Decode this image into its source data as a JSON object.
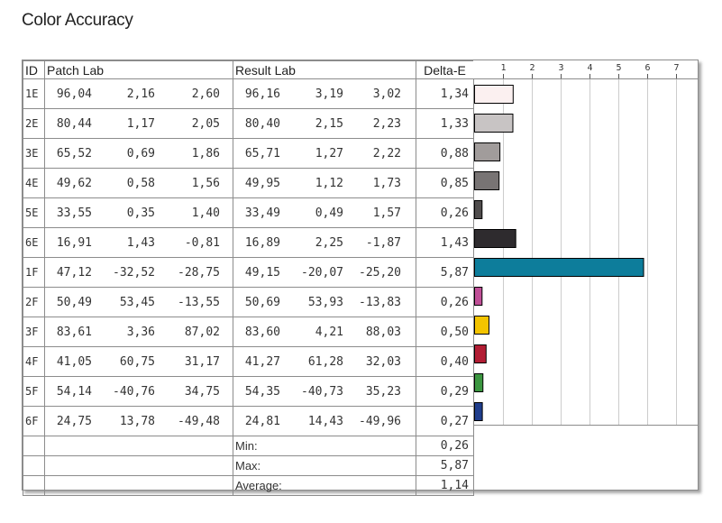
{
  "page": {
    "title": "Color Accuracy"
  },
  "table": {
    "headers": {
      "id": "ID",
      "patch": "Patch Lab",
      "result": "Result Lab",
      "delta": "Delta-E"
    },
    "rows": [
      {
        "id": "1E",
        "patch": [
          "96,04",
          "2,16",
          "2,60"
        ],
        "result": [
          "96,16",
          "3,19",
          "3,02"
        ],
        "delta": "1,34",
        "color": "#fbf0f0"
      },
      {
        "id": "2E",
        "patch": [
          "80,44",
          "1,17",
          "2,05"
        ],
        "result": [
          "80,40",
          "2,15",
          "2,23"
        ],
        "delta": "1,33",
        "color": "#c8c4c4"
      },
      {
        "id": "3E",
        "patch": [
          "65,52",
          "0,69",
          "1,86"
        ],
        "result": [
          "65,71",
          "1,27",
          "2,22"
        ],
        "delta": "0,88",
        "color": "#a19c9b"
      },
      {
        "id": "4E",
        "patch": [
          "49,62",
          "0,58",
          "1,56"
        ],
        "result": [
          "49,95",
          "1,12",
          "1,73"
        ],
        "delta": "0,85",
        "color": "#787474"
      },
      {
        "id": "5E",
        "patch": [
          "33,55",
          "0,35",
          "1,40"
        ],
        "result": [
          "33,49",
          "0,49",
          "1,57"
        ],
        "delta": "0,26",
        "color": "#4f4c4c"
      },
      {
        "id": "6E",
        "patch": [
          "16,91",
          "1,43",
          "-0,81"
        ],
        "result": [
          "16,89",
          "2,25",
          "-1,87"
        ],
        "delta": "1,43",
        "color": "#2e2b2e"
      },
      {
        "id": "1F",
        "patch": [
          "47,12",
          "-32,52",
          "-28,75"
        ],
        "result": [
          "49,15",
          "-20,07",
          "-25,20"
        ],
        "delta": "5,87",
        "color": "#0d7d9b"
      },
      {
        "id": "2F",
        "patch": [
          "50,49",
          "53,45",
          "-13,55"
        ],
        "result": [
          "50,69",
          "53,93",
          "-13,83"
        ],
        "delta": "0,26",
        "color": "#c04f97"
      },
      {
        "id": "3F",
        "patch": [
          "83,61",
          "3,36",
          "87,02"
        ],
        "result": [
          "83,60",
          "4,21",
          "88,03"
        ],
        "delta": "0,50",
        "color": "#f3c400"
      },
      {
        "id": "4F",
        "patch": [
          "41,05",
          "60,75",
          "31,17"
        ],
        "result": [
          "41,27",
          "61,28",
          "32,03"
        ],
        "delta": "0,40",
        "color": "#b21d34"
      },
      {
        "id": "5F",
        "patch": [
          "54,14",
          "-40,76",
          "34,75"
        ],
        "result": [
          "54,35",
          "-40,73",
          "35,23"
        ],
        "delta": "0,29",
        "color": "#3b9640"
      },
      {
        "id": "6F",
        "patch": [
          "24,75",
          "13,78",
          "-49,48"
        ],
        "result": [
          "24,81",
          "14,43",
          "-49,96"
        ],
        "delta": "0,27",
        "color": "#1f3d8c"
      }
    ],
    "summary": [
      {
        "label": "Min:",
        "value": "0,26"
      },
      {
        "label": "Max:",
        "value": "5,87"
      },
      {
        "label": "Average:",
        "value": "1,14"
      }
    ]
  },
  "chart_data": {
    "type": "bar",
    "orientation": "horizontal",
    "categories": [
      "1E",
      "2E",
      "3E",
      "4E",
      "5E",
      "6E",
      "1F",
      "2F",
      "3F",
      "4F",
      "5F",
      "6F"
    ],
    "values": [
      1.34,
      1.33,
      0.88,
      0.85,
      0.26,
      1.43,
      5.87,
      0.26,
      0.5,
      0.4,
      0.29,
      0.27
    ],
    "colors": [
      "#fbf0f0",
      "#c8c4c4",
      "#a19c9b",
      "#787474",
      "#4f4c4c",
      "#2e2b2e",
      "#0d7d9b",
      "#c04f97",
      "#f3c400",
      "#b21d34",
      "#3b9640",
      "#1f3d8c"
    ],
    "xlim": [
      0,
      7.7
    ],
    "ticks": [
      "1",
      "2",
      "3",
      "4",
      "5",
      "6",
      "7"
    ],
    "grid": true,
    "bar_outline": "#000000",
    "grid_color": "#cccccc"
  }
}
